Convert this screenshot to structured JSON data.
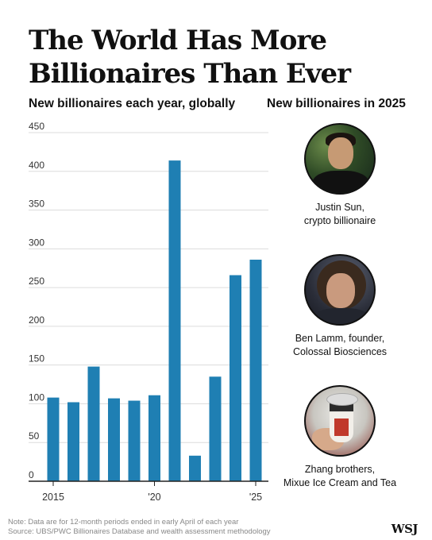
{
  "title": "The World Has More Billionaires Than Ever",
  "chart_subtitle": "New billionaires each year, globally",
  "side_subtitle": "New billionaires in 2025",
  "colors": {
    "bar": "#1f7fb3",
    "grid": "#dcdcdc",
    "axis": "#222222"
  },
  "chart_data": {
    "type": "bar",
    "x": [
      2015,
      2016,
      2017,
      2018,
      2019,
      2020,
      2021,
      2022,
      2023,
      2024,
      2025
    ],
    "values": [
      108,
      102,
      148,
      107,
      104,
      111,
      414,
      33,
      135,
      266,
      286
    ],
    "xtick_labels": [
      {
        "x": 2015,
        "label": "2015"
      },
      {
        "x": 2020,
        "label": "'20"
      },
      {
        "x": 2025,
        "label": "'25"
      }
    ],
    "yticks": [
      0,
      50,
      100,
      150,
      200,
      250,
      300,
      350,
      400,
      450
    ],
    "ylim": [
      0,
      450
    ],
    "grid": true
  },
  "profiles": [
    {
      "caption_1": "Justin Sun,",
      "caption_2": "crypto billionaire",
      "icon": "portrait-justin-sun"
    },
    {
      "caption_1": "Ben Lamm, founder,",
      "caption_2": "Colossal Biosciences",
      "icon": "portrait-ben-lamm"
    },
    {
      "caption_1": "Zhang brothers,",
      "caption_2": "Mixue Ice Cream and Tea",
      "icon": "mixue-drink-photo"
    }
  ],
  "note_1": "Note: Data are for 12-month periods ended in early April of each year",
  "note_2": "Source: UBS/PWC Billionaires Database and wealth assessment methodology",
  "logo": "WSJ"
}
